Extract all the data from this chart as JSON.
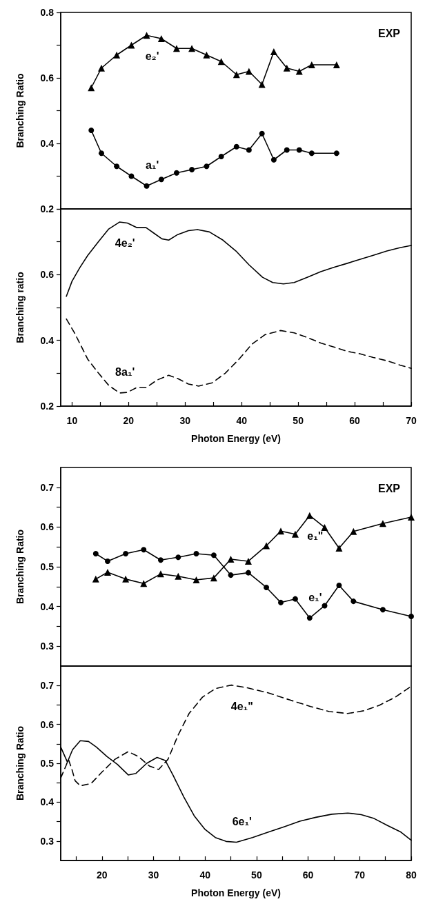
{
  "chart_data": [
    {
      "type": "line",
      "ylabel": "Branching Ratio",
      "annotations": [
        "EXP"
      ],
      "xlim": [
        8,
        70
      ],
      "ylim": [
        0.2,
        0.8
      ],
      "yticks": [
        0.2,
        {
          "value": 0.3,
          "label": null
        },
        0.4,
        {
          "value": 0.5,
          "label": null
        },
        0.6,
        {
          "value": 0.7,
          "label": null
        },
        0.8
      ],
      "tick_labels": "y",
      "grid": false,
      "line_style": "solid",
      "series": [
        {
          "name": "e₂'",
          "color": "#000000",
          "marker": "triangle",
          "x": [
            13.4,
            15.2,
            17.9,
            20.5,
            23.2,
            25.8,
            28.5,
            31.2,
            33.8,
            36.4,
            39.1,
            41.3,
            43.6,
            45.7,
            48.0,
            50.2,
            52.4,
            56.8
          ],
          "values": [
            0.57,
            0.63,
            0.67,
            0.7,
            0.73,
            0.72,
            0.69,
            0.69,
            0.67,
            0.65,
            0.61,
            0.62,
            0.58,
            0.68,
            0.63,
            0.62,
            0.64,
            0.64
          ]
        },
        {
          "name": "a₁'",
          "color": "#000000",
          "marker": "circle",
          "x": [
            13.4,
            15.2,
            17.9,
            20.5,
            23.2,
            25.8,
            28.5,
            31.2,
            33.8,
            36.4,
            39.1,
            41.3,
            43.6,
            45.7,
            48.0,
            50.2,
            52.4,
            56.8
          ],
          "values": [
            0.44,
            0.37,
            0.33,
            0.3,
            0.27,
            0.29,
            0.31,
            0.32,
            0.33,
            0.36,
            0.39,
            0.38,
            0.43,
            0.35,
            0.38,
            0.38,
            0.37,
            0.37
          ]
        }
      ]
    },
    {
      "type": "line",
      "xlabel": "Photon Energy (eV)",
      "ylabel": "Branching ratio",
      "xlim": [
        8,
        70
      ],
      "xticks": [
        10,
        {
          "value": 15,
          "label": null
        },
        20,
        {
          "value": 25,
          "label": null
        },
        30,
        {
          "value": 35,
          "label": null
        },
        40,
        {
          "value": 45,
          "label": null
        },
        50,
        {
          "value": 55,
          "label": null
        },
        60,
        {
          "value": 65,
          "label": null
        },
        70
      ],
      "ylim": [
        0.2,
        0.8
      ],
      "yticks": [
        0.2,
        {
          "value": 0.3,
          "label": null
        },
        0.4,
        {
          "value": 0.5,
          "label": null
        },
        0.6,
        {
          "value": 0.7,
          "label": null
        },
        {
          "value": 0.8,
          "label": null
        }
      ],
      "grid": false,
      "marker": "none",
      "series": [
        {
          "name": "4e₂'",
          "color": "#000000",
          "line_style": "solid",
          "x": [
            9.0,
            10.0,
            11.4,
            12.8,
            14.7,
            16.5,
            18.4,
            19.8,
            21.5,
            23.1,
            24.5,
            25.9,
            27.1,
            28.7,
            30.6,
            32.2,
            34.3,
            36.7,
            39.0,
            41.3,
            43.7,
            45.5,
            47.4,
            49.3,
            51.6,
            54.0,
            56.3,
            58.6,
            61.0,
            63.3,
            65.7,
            68.0,
            70.0
          ],
          "values": [
            0.534,
            0.58,
            0.622,
            0.659,
            0.701,
            0.739,
            0.76,
            0.757,
            0.743,
            0.743,
            0.726,
            0.709,
            0.705,
            0.722,
            0.734,
            0.737,
            0.73,
            0.705,
            0.672,
            0.63,
            0.592,
            0.576,
            0.572,
            0.576,
            0.592,
            0.609,
            0.622,
            0.634,
            0.647,
            0.659,
            0.672,
            0.682,
            0.689
          ]
        },
        {
          "name": "8a₁'",
          "color": "#000000",
          "line_style": "dashed",
          "x": [
            9.0,
            10.5,
            12.8,
            14.7,
            16.5,
            18.4,
            19.8,
            21.5,
            23.1,
            25.0,
            27.1,
            28.7,
            30.6,
            32.4,
            34.8,
            37.1,
            39.5,
            41.8,
            44.1,
            46.9,
            49.3,
            51.6,
            54.0,
            56.3,
            58.6,
            61.0,
            63.3,
            65.7,
            68.0,
            70.0
          ],
          "values": [
            0.465,
            0.421,
            0.342,
            0.3,
            0.263,
            0.24,
            0.242,
            0.257,
            0.256,
            0.279,
            0.294,
            0.284,
            0.267,
            0.261,
            0.271,
            0.3,
            0.342,
            0.388,
            0.417,
            0.43,
            0.423,
            0.409,
            0.392,
            0.38,
            0.367,
            0.359,
            0.348,
            0.338,
            0.325,
            0.315
          ]
        }
      ]
    },
    {
      "type": "line",
      "ylabel": "Branching Ratio",
      "annotations": [
        "EXP"
      ],
      "xlim": [
        12,
        80
      ],
      "ylim": [
        0.25,
        0.75
      ],
      "yticks": [
        0.3,
        {
          "value": 0.35,
          "label": null
        },
        0.4,
        {
          "value": 0.45,
          "label": null
        },
        0.5,
        {
          "value": 0.55,
          "label": null
        },
        0.6,
        {
          "value": 0.65,
          "label": null
        },
        0.7
      ],
      "tick_labels": "y",
      "grid": false,
      "line_style": "solid",
      "series": [
        {
          "name": "e₁'",
          "color": "#000000",
          "marker": "circle",
          "x": [
            18.8,
            21.1,
            24.6,
            28.1,
            31.4,
            34.8,
            38.3,
            41.7,
            45.0,
            48.4,
            51.9,
            54.7,
            57.5,
            60.3,
            63.2,
            66.0,
            68.8,
            74.5,
            80.0
          ],
          "values": [
            0.533,
            0.514,
            0.533,
            0.543,
            0.517,
            0.524,
            0.533,
            0.529,
            0.479,
            0.485,
            0.448,
            0.41,
            0.419,
            0.371,
            0.402,
            0.453,
            0.413,
            0.392,
            0.375
          ]
        },
        {
          "name": "e₁\"",
          "color": "#000000",
          "marker": "triangle",
          "x": [
            18.8,
            21.1,
            24.6,
            28.1,
            31.4,
            34.8,
            38.3,
            41.7,
            45.0,
            48.4,
            51.9,
            54.7,
            57.5,
            60.3,
            63.2,
            66.0,
            68.8,
            74.5,
            80.0
          ],
          "values": [
            0.469,
            0.486,
            0.469,
            0.458,
            0.482,
            0.476,
            0.467,
            0.472,
            0.519,
            0.514,
            0.553,
            0.59,
            0.582,
            0.629,
            0.599,
            0.547,
            0.589,
            0.609,
            0.625
          ]
        }
      ]
    },
    {
      "type": "line",
      "xlabel": "Photon Energy (eV)",
      "ylabel": "Branching Ratio",
      "xlim": [
        12,
        80
      ],
      "xticks": [
        {
          "value": 15,
          "label": null
        },
        20,
        {
          "value": 25,
          "label": null
        },
        30,
        {
          "value": 35,
          "label": null
        },
        40,
        {
          "value": 45,
          "label": null
        },
        50,
        {
          "value": 55,
          "label": null
        },
        60,
        {
          "value": 65,
          "label": null
        },
        70,
        {
          "value": 75,
          "label": null
        },
        80
      ],
      "ylim": [
        0.25,
        0.75
      ],
      "yticks": [
        0.3,
        {
          "value": 0.35,
          "label": null
        },
        0.4,
        {
          "value": 0.45,
          "label": null
        },
        0.5,
        {
          "value": 0.55,
          "label": null
        },
        0.6,
        {
          "value": 0.65,
          "label": null
        },
        0.7
      ],
      "grid": false,
      "marker": "none",
      "series": [
        {
          "name": "6e₁'",
          "color": "#000000",
          "line_style": "solid",
          "x": [
            12.0,
            13.3,
            14.3,
            15.8,
            17.4,
            18.9,
            21.0,
            23.0,
            25.1,
            26.6,
            28.7,
            30.7,
            32.3,
            33.8,
            35.9,
            37.9,
            40.0,
            42.0,
            44.1,
            46.1,
            49.2,
            52.3,
            55.4,
            58.4,
            61.5,
            64.6,
            67.7,
            70.3,
            72.8,
            75.4,
            78.0,
            80.0
          ],
          "values": [
            0.542,
            0.503,
            0.535,
            0.558,
            0.556,
            0.542,
            0.517,
            0.497,
            0.47,
            0.474,
            0.5,
            0.515,
            0.507,
            0.469,
            0.413,
            0.365,
            0.33,
            0.309,
            0.299,
            0.297,
            0.309,
            0.323,
            0.337,
            0.351,
            0.361,
            0.369,
            0.372,
            0.368,
            0.358,
            0.34,
            0.323,
            0.302
          ]
        },
        {
          "name": "4e₁\"",
          "color": "#000000",
          "line_style": "dashed",
          "x": [
            12.0,
            13.0,
            13.5,
            14.2,
            14.8,
            15.8,
            17.9,
            19.9,
            22.5,
            25.1,
            27.1,
            29.2,
            31.0,
            32.8,
            34.8,
            36.9,
            39.5,
            42.0,
            45.1,
            48.2,
            52.3,
            56.4,
            60.5,
            64.1,
            67.7,
            70.8,
            73.8,
            76.9,
            80.0
          ],
          "values": [
            0.462,
            0.493,
            0.51,
            0.483,
            0.455,
            0.442,
            0.448,
            0.476,
            0.51,
            0.53,
            0.517,
            0.493,
            0.484,
            0.51,
            0.573,
            0.628,
            0.67,
            0.692,
            0.701,
            0.694,
            0.681,
            0.663,
            0.646,
            0.633,
            0.628,
            0.635,
            0.649,
            0.67,
            0.698
          ]
        }
      ]
    }
  ]
}
